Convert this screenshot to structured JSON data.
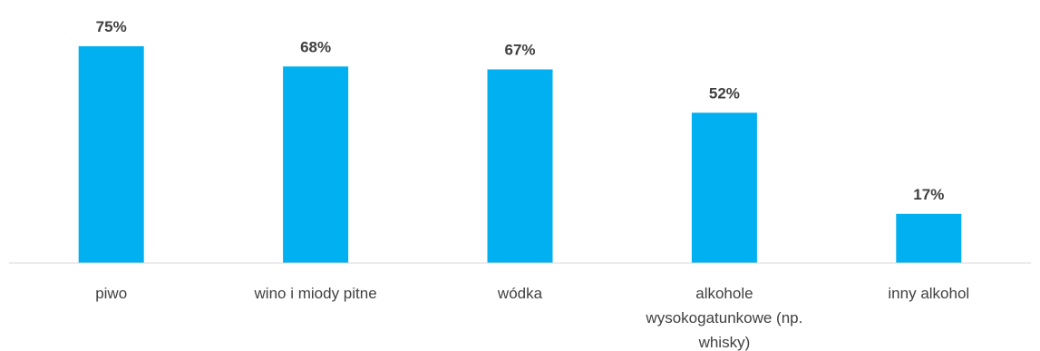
{
  "chart_data": {
    "type": "bar",
    "categories": [
      [
        "piwo"
      ],
      [
        "wino i miody pitne"
      ],
      [
        "wódka"
      ],
      [
        "alkohole",
        "wysokogatunkowe (np.",
        "whisky)"
      ],
      [
        "inny alkohol"
      ]
    ],
    "values": [
      75,
      68,
      67,
      52,
      17
    ],
    "value_labels": [
      "75%",
      "68%",
      "67%",
      "52%",
      "17%"
    ],
    "unit": "%",
    "ylim": [
      0,
      75
    ],
    "grid": false,
    "legend": "none",
    "colors": {
      "bar": "#00B0F0",
      "axis": "#D9D9D9",
      "text": "#404040"
    }
  }
}
